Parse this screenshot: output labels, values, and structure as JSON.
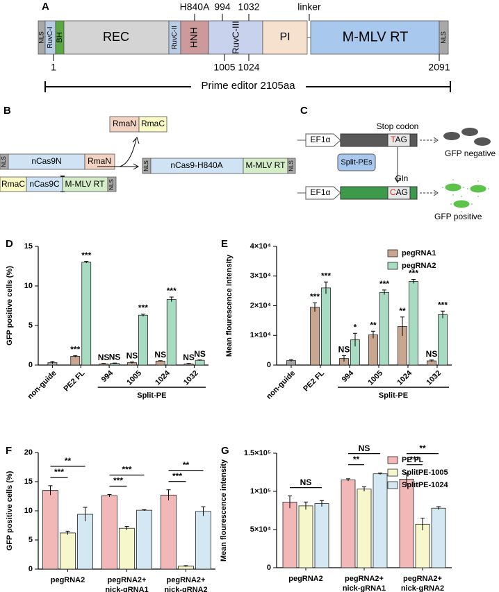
{
  "panel_a": {
    "label": "A",
    "domains": [
      "NLS",
      "RuvC-I",
      "BH",
      "REC",
      "RuvC-II",
      "HNH",
      "RuvC-III",
      "PI",
      "M-MLV RT",
      "NLS"
    ],
    "above": [
      "H840A",
      "994",
      "1032",
      "linker"
    ],
    "below": [
      "1",
      "1005",
      "1024",
      "2091"
    ],
    "span": "Prime editor 2105aa"
  },
  "panel_b": {
    "label": "B",
    "intein": [
      "RmaN",
      "RmaC"
    ],
    "n_half": [
      "NLS",
      "nCas9N",
      "RmaN"
    ],
    "c_half": [
      "RmaC",
      "nCas9C",
      "M-MLV RT",
      "NLS"
    ],
    "product": [
      "NLS",
      "nCas9-H840A",
      "M-MLV RT",
      "NLS"
    ]
  },
  "panel_c": {
    "label": "C",
    "promoter": "EF1α",
    "stop_label": "Stop codon",
    "stop_codon": {
      "first": "T",
      "rest": "AG"
    },
    "negative": "GFP negative",
    "enzyme": "Split-PEs",
    "gln_label": "Gln",
    "gln_codon": {
      "first": "C",
      "rest": "AG"
    },
    "positive": "GFP positive"
  },
  "chart_data": [
    {
      "type": "bar",
      "panel": "D",
      "ylabel": "GFP positive cells (%)",
      "categories": [
        "non-guide",
        "PE2 FL",
        "994",
        "1005",
        "1024",
        "1032"
      ],
      "group_label": "Split-PE",
      "ylim": [
        0,
        15
      ],
      "yticks": [
        0,
        5,
        10,
        15
      ],
      "series": [
        {
          "color": "#a6a6a6",
          "values": [
            0.3,
            null,
            null,
            null,
            null,
            null
          ],
          "errors": [
            0.15,
            null,
            null,
            null,
            null,
            null
          ]
        },
        {
          "color": "#c8a690",
          "values": [
            null,
            1.1,
            0.15,
            0.3,
            0.5,
            0.15
          ],
          "errors": [
            null,
            0.1,
            0.05,
            0.1,
            0.05,
            0.05
          ],
          "significance": [
            null,
            "***",
            "NS",
            "NS",
            "NS",
            "NS"
          ]
        },
        {
          "color": "#a8dcc2",
          "values": [
            null,
            13.0,
            0.2,
            6.3,
            8.3,
            0.6
          ],
          "errors": [
            null,
            0.1,
            0.05,
            0.15,
            0.3,
            0.05
          ],
          "significance": [
            null,
            "***",
            "NS",
            "***",
            "***",
            "NS"
          ]
        }
      ]
    },
    {
      "type": "bar",
      "panel": "E",
      "ylabel": "Mean flourescence intensity",
      "categories": [
        "non-guide",
        "PE2 FL",
        "994",
        "1005",
        "1024",
        "1032"
      ],
      "group_label": "Split-PE",
      "ylim": [
        0,
        40000
      ],
      "yticks": [
        0,
        {
          "value": 10000,
          "label": "1×10⁴"
        },
        {
          "value": 20000,
          "label": "2×10⁴"
        },
        {
          "value": 30000,
          "label": "3×10⁴"
        },
        {
          "value": 40000,
          "label": "4×10⁴"
        }
      ],
      "legend": "upper right",
      "series": [
        {
          "color": "#a6a6a6",
          "values": [
            1500,
            null,
            null,
            null,
            null,
            null
          ],
          "errors": [
            300,
            null,
            null,
            null,
            null,
            null
          ]
        },
        {
          "name": "pegRNA1",
          "color": "#c8a690",
          "values": [
            null,
            19500,
            2200,
            10200,
            13000,
            1400
          ],
          "errors": [
            null,
            1500,
            1000,
            1200,
            3200,
            300
          ],
          "significance": [
            null,
            "***",
            "NS",
            "**",
            "**",
            "NS"
          ]
        },
        {
          "name": "pegRNA2",
          "color": "#a8dcc2",
          "values": [
            null,
            26000,
            8500,
            24500,
            28200,
            17000
          ],
          "errors": [
            null,
            2000,
            2200,
            800,
            700,
            1200
          ],
          "significance": [
            null,
            "***",
            "*",
            "***",
            "***",
            "***"
          ]
        }
      ]
    },
    {
      "type": "bar",
      "panel": "F",
      "ylabel": "GFP positive cells (%)",
      "categories": [
        [
          "pegRNA2"
        ],
        [
          "pegRNA2+",
          "nick-gRNA1"
        ],
        [
          "pegRNA2+",
          "nick-gRNA2"
        ]
      ],
      "ylim": [
        0,
        20
      ],
      "yticks": [
        0,
        5,
        10,
        15,
        20
      ],
      "comparisons": [
        [
          "***",
          "**"
        ],
        [
          "***",
          "***"
        ],
        [
          "***",
          "**"
        ]
      ],
      "series": [
        {
          "color": "#f2b8b8",
          "values": [
            13.5,
            12.6,
            12.7
          ],
          "errors": [
            0.8,
            0.2,
            0.9
          ]
        },
        {
          "color": "#f7f7cc",
          "values": [
            6.2,
            7.0,
            0.5
          ],
          "errors": [
            0.3,
            0.3,
            0.1
          ]
        },
        {
          "color": "#d3e8f2",
          "values": [
            9.4,
            10.1,
            9.9
          ],
          "errors": [
            1.2,
            0.1,
            0.8
          ]
        }
      ]
    },
    {
      "type": "bar",
      "panel": "G",
      "ylabel": "Mean flourescence intensity",
      "categories": [
        [
          "pegRNA2"
        ],
        [
          "pegRNA2+",
          "nick-gRNA1"
        ],
        [
          "pegRNA2+",
          "nick-gRNA2"
        ]
      ],
      "ylim": [
        0,
        150000
      ],
      "yticks": [
        0,
        {
          "value": 50000,
          "label": "5×10⁴"
        },
        {
          "value": 100000,
          "label": "1×10⁵"
        },
        {
          "value": 150000,
          "label": "1.5×10⁵"
        }
      ],
      "legend": "upper right",
      "comparisons": [
        [
          "NS"
        ],
        [
          "**",
          "NS"
        ],
        [
          "***",
          "**"
        ]
      ],
      "series": [
        {
          "name": "PE FL",
          "color": "#f2b8b8",
          "values": [
            86000,
            115000,
            116000
          ],
          "errors": [
            8000,
            1500,
            8000
          ]
        },
        {
          "name": "SplitPE-1005",
          "color": "#f7f7cc",
          "values": [
            81000,
            103000,
            57000
          ],
          "errors": [
            5000,
            3000,
            8000
          ]
        },
        {
          "name": "SplitPE-1024",
          "color": "#d3e8f2",
          "values": [
            84000,
            123000,
            78000
          ],
          "errors": [
            4000,
            1000,
            2000
          ]
        }
      ]
    }
  ]
}
